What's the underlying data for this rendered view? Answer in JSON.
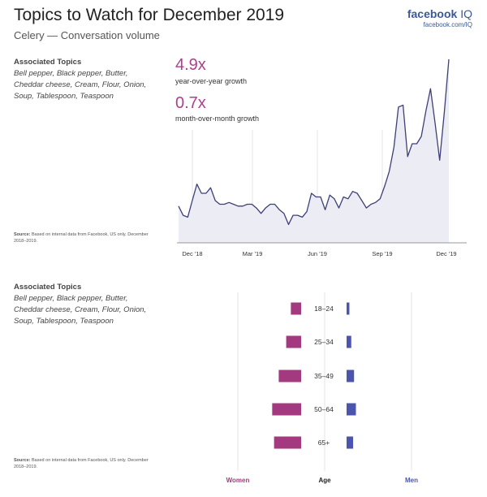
{
  "header": {
    "title": "Topics to Watch for December 2019",
    "subtitle": "Celery — Conversation volume",
    "brand": "facebook",
    "brand_suffix": "IQ",
    "brand_url": "facebook.com/IQ"
  },
  "panel_top": {
    "assoc_heading": "Associated Topics",
    "assoc_topics": "Bell pepper, Black pepper, Butter, Cheddar cheese, Cream, Flour, Onion, Soup, Tablespoon, Teaspoon",
    "source_label": "Source:",
    "source_text": "Based on internal data from Facebook, US only. December 2018–2019."
  },
  "panel_bottom": {
    "assoc_heading": "Associated Topics",
    "assoc_topics": "Bell pepper, Black pepper, Butter, Cheddar cheese, Cream, Flour, Onion, Soup, Tablespoon, Teaspoon",
    "source_label": "Source:",
    "source_text": "Based on internal data from Facebook, US only. December 2018–2019."
  },
  "stats": {
    "yoy_value": "4.9x",
    "yoy_label": "year-over-year growth",
    "mom_value": "0.7x",
    "mom_label": "month-over-month growth"
  },
  "colors": {
    "women": "#a33a80",
    "men": "#4b55ad",
    "line": "#3d3f78",
    "area": "#ececf4",
    "accent": "#b03e8c",
    "brand": "#3b5998"
  },
  "chart_data": [
    {
      "type": "area",
      "x_ticks": [
        "Dec '18",
        "Mar '19",
        "Jun '19",
        "Sep '19",
        "Dec '19"
      ],
      "grid": true,
      "values": [
        20,
        15,
        14,
        23,
        32,
        27,
        27,
        30,
        23,
        21,
        21,
        22,
        21,
        20,
        20,
        21,
        21,
        19,
        16,
        19,
        21,
        21,
        18,
        16,
        10,
        15,
        15,
        14,
        17,
        27,
        25,
        25,
        18,
        26,
        24,
        19,
        25,
        24,
        28,
        27,
        23,
        19,
        21,
        22,
        24,
        31,
        39,
        52,
        74,
        75,
        47,
        54,
        54,
        58,
        72,
        84,
        65,
        45,
        71,
        100
      ]
    },
    {
      "type": "bar",
      "orientation": "horizontal",
      "categories": [
        "18–24",
        "25–34",
        "35–49",
        "50–64",
        "65+"
      ],
      "series": [
        {
          "name": "Women",
          "values": [
            0.11,
            0.16,
            0.24,
            0.31,
            0.29
          ]
        },
        {
          "name": "Men",
          "values": [
            0.03,
            0.05,
            0.08,
            0.1,
            0.07
          ]
        }
      ],
      "xlabel_women": "Women",
      "xlabel_age": "Age",
      "xlabel_men": "Men",
      "grid": true
    }
  ]
}
